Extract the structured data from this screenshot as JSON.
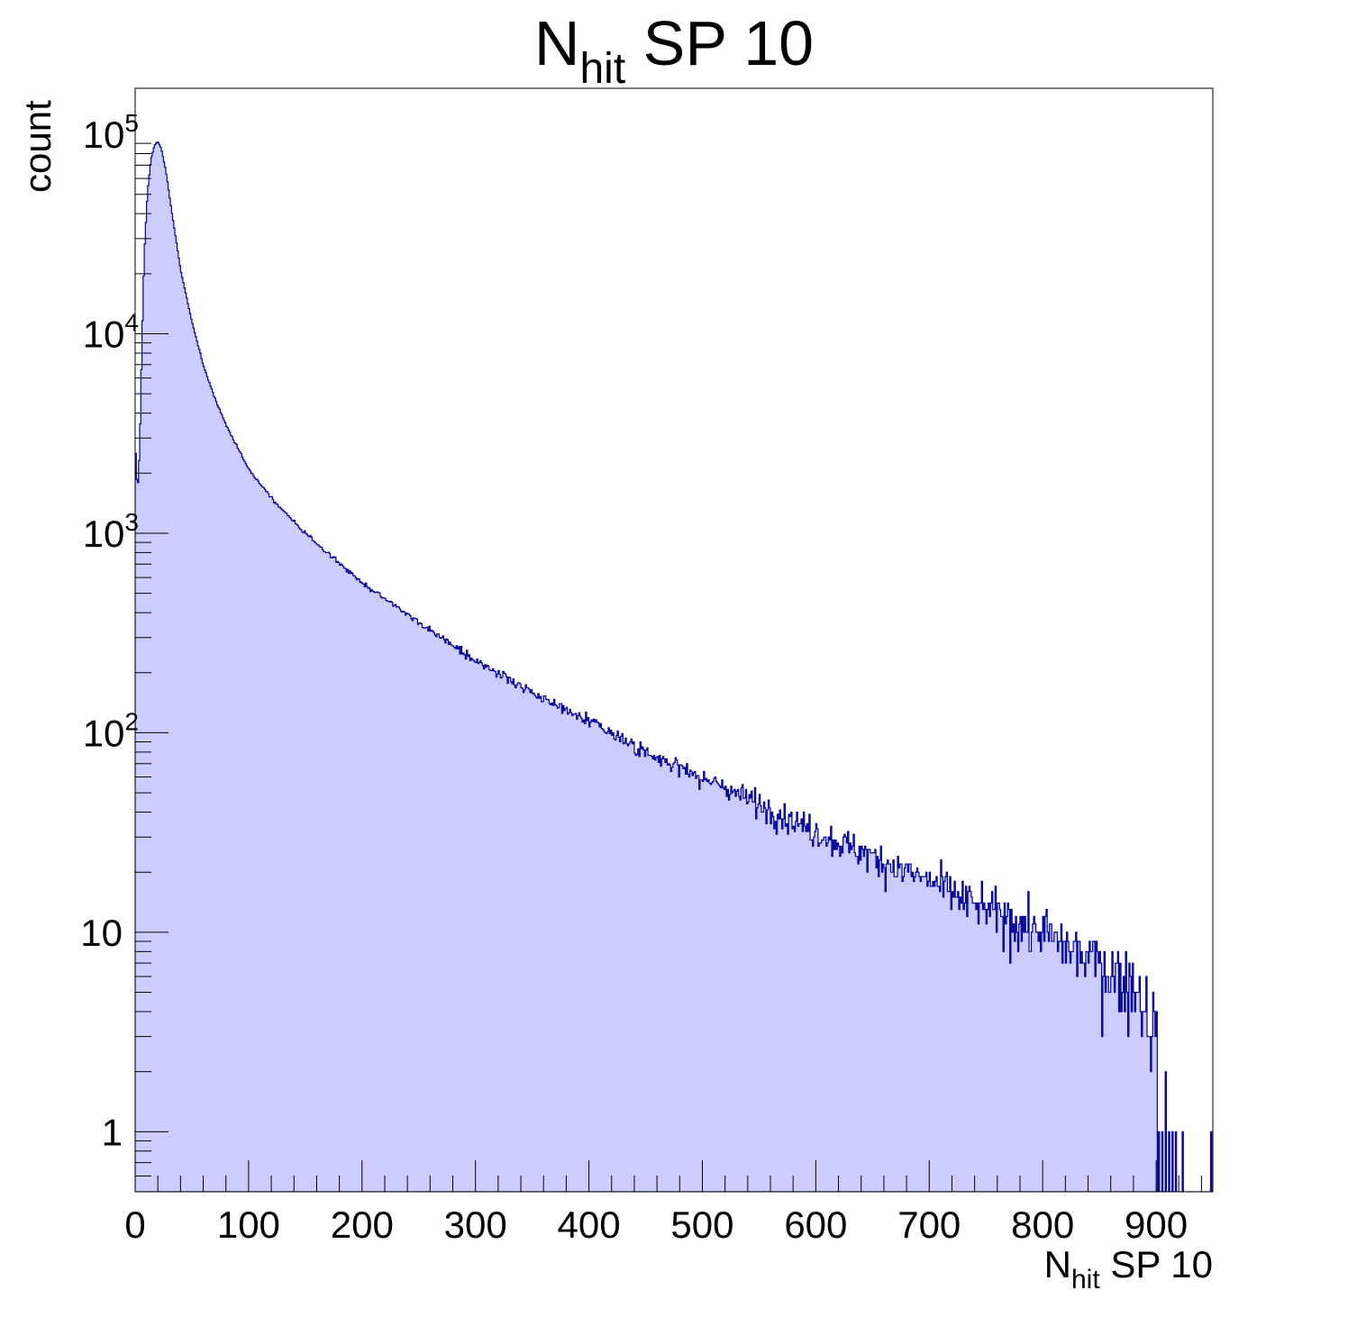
{
  "chart_data": {
    "type": "histogram",
    "title": {
      "main": "N",
      "sub": "hit",
      "rest": " SP 10"
    },
    "xlabel": {
      "main": "N",
      "sub": "hit",
      "rest": " SP 10"
    },
    "ylabel": "count",
    "x_scale": "linear",
    "y_scale": "log",
    "xlim": [
      0,
      950
    ],
    "ylim": [
      0.5,
      170000
    ],
    "grid": false,
    "legend": "none",
    "x_tick_labels": [
      "0",
      "100",
      "200",
      "300",
      "400",
      "500",
      "600",
      "700",
      "800",
      "900"
    ],
    "x_ticks": [
      0,
      100,
      200,
      300,
      400,
      500,
      600,
      700,
      800,
      900
    ],
    "y_tick_labels": [
      {
        "value": 1,
        "base": "1",
        "exp": ""
      },
      {
        "value": 10,
        "base": "10",
        "exp": ""
      },
      {
        "value": 100,
        "base": "10",
        "exp": "2"
      },
      {
        "value": 1000,
        "base": "10",
        "exp": "3"
      },
      {
        "value": 10000,
        "base": "10",
        "exp": "4"
      },
      {
        "value": 100000,
        "base": "10",
        "exp": "5"
      }
    ],
    "fill_color": "#ccccff",
    "line_color": "#000099",
    "bin_width": 1,
    "profile_points": [
      {
        "x": 0,
        "y": 2900
      },
      {
        "x": 2,
        "y": 1600
      },
      {
        "x": 4,
        "y": 2600
      },
      {
        "x": 6,
        "y": 9000
      },
      {
        "x": 8,
        "y": 25000
      },
      {
        "x": 11,
        "y": 52000
      },
      {
        "x": 14,
        "y": 75000
      },
      {
        "x": 17,
        "y": 88000
      },
      {
        "x": 20,
        "y": 92000
      },
      {
        "x": 23,
        "y": 85000
      },
      {
        "x": 27,
        "y": 66000
      },
      {
        "x": 32,
        "y": 42000
      },
      {
        "x": 40,
        "y": 21000
      },
      {
        "x": 50,
        "y": 11500
      },
      {
        "x": 60,
        "y": 7000
      },
      {
        "x": 70,
        "y": 4800
      },
      {
        "x": 80,
        "y": 3500
      },
      {
        "x": 100,
        "y": 2100
      },
      {
        "x": 120,
        "y": 1500
      },
      {
        "x": 150,
        "y": 1000
      },
      {
        "x": 200,
        "y": 560
      },
      {
        "x": 250,
        "y": 360
      },
      {
        "x": 300,
        "y": 230
      },
      {
        "x": 350,
        "y": 160
      },
      {
        "x": 400,
        "y": 115
      },
      {
        "x": 450,
        "y": 80
      },
      {
        "x": 500,
        "y": 60
      },
      {
        "x": 550,
        "y": 44
      },
      {
        "x": 600,
        "y": 32
      },
      {
        "x": 650,
        "y": 24
      },
      {
        "x": 700,
        "y": 18
      },
      {
        "x": 750,
        "y": 13
      },
      {
        "x": 800,
        "y": 10
      },
      {
        "x": 850,
        "y": 7
      },
      {
        "x": 880,
        "y": 5.5
      },
      {
        "x": 900,
        "y": 3.5
      },
      {
        "x": 910,
        "y": 2
      },
      {
        "x": 920,
        "y": 1
      }
    ],
    "tail_bins": [
      {
        "x": 902,
        "y": 1
      },
      {
        "x": 905,
        "y": 1
      },
      {
        "x": 908,
        "y": 2
      },
      {
        "x": 911,
        "y": 1
      },
      {
        "x": 914,
        "y": 1
      },
      {
        "x": 917,
        "y": 1
      },
      {
        "x": 923,
        "y": 1
      },
      {
        "x": 948,
        "y": 1
      }
    ]
  }
}
